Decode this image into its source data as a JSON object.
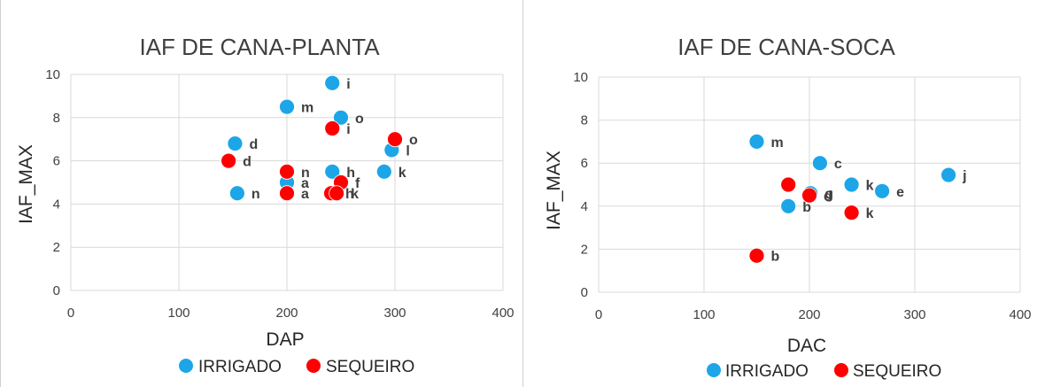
{
  "colors": {
    "irrigado": "#1ca6e8",
    "sequeiro": "#ff0000",
    "grid": "#d9d9d9"
  },
  "chart_data": [
    {
      "type": "scatter",
      "title": "IAF DE CANA-PLANTA",
      "xlabel": "DAP",
      "ylabel": "IAF_MAX",
      "xlim": [
        0,
        400
      ],
      "ylim": [
        0,
        10
      ],
      "xticks": [
        "0",
        "100",
        "200",
        "300",
        "400"
      ],
      "yticks": [
        "0",
        "2",
        "4",
        "6",
        "8",
        "10"
      ],
      "grid": true,
      "legend_position": "bottom",
      "series": [
        {
          "name": "IRRIGADO",
          "points": [
            {
              "x": 242,
              "y": 9.6,
              "label": "i"
            },
            {
              "x": 200,
              "y": 8.5,
              "label": "m"
            },
            {
              "x": 250,
              "y": 8.0,
              "label": "o"
            },
            {
              "x": 152,
              "y": 6.8,
              "label": "d"
            },
            {
              "x": 297,
              "y": 6.5,
              "label": "l"
            },
            {
              "x": 200,
              "y": 5.0,
              "label": "a"
            },
            {
              "x": 242,
              "y": 5.5,
              "label": "h"
            },
            {
              "x": 290,
              "y": 5.5,
              "label": "k"
            },
            {
              "x": 154,
              "y": 4.5,
              "label": "n"
            }
          ]
        },
        {
          "name": "SEQUEIRO",
          "points": [
            {
              "x": 242,
              "y": 7.5,
              "label": "i"
            },
            {
              "x": 300,
              "y": 7.0,
              "label": "o"
            },
            {
              "x": 146,
              "y": 6.0,
              "label": "d"
            },
            {
              "x": 200,
              "y": 5.5,
              "label": "n"
            },
            {
              "x": 250,
              "y": 5.0,
              "label": "f"
            },
            {
              "x": 200,
              "y": 4.5,
              "label": "a"
            },
            {
              "x": 241,
              "y": 4.5,
              "label": "h"
            },
            {
              "x": 246,
              "y": 4.5,
              "label": "k"
            }
          ]
        }
      ]
    },
    {
      "type": "scatter",
      "title": "IAF DE CANA-SOCA",
      "xlabel": "DAC",
      "ylabel": "IAF_MAX",
      "xlim": [
        0,
        400
      ],
      "ylim": [
        0,
        10
      ],
      "xticks": [
        "0",
        "100",
        "200",
        "300",
        "400"
      ],
      "yticks": [
        "0",
        "2",
        "4",
        "6",
        "8",
        "10"
      ],
      "grid": true,
      "legend_position": "bottom",
      "series": [
        {
          "name": "IRRIGADO",
          "points": [
            {
              "x": 150,
              "y": 7.0,
              "label": "m"
            },
            {
              "x": 210,
              "y": 6.0,
              "label": "c"
            },
            {
              "x": 332,
              "y": 5.45,
              "label": "j"
            },
            {
              "x": 240,
              "y": 5.0,
              "label": "k"
            },
            {
              "x": 269,
              "y": 4.7,
              "label": "e"
            },
            {
              "x": 180,
              "y": 4.0,
              "label": "b"
            },
            {
              "x": 201,
              "y": 4.6,
              "label": "g"
            }
          ]
        },
        {
          "name": "SEQUEIRO",
          "points": [
            {
              "x": 180,
              "y": 5.0,
              "label": ""
            },
            {
              "x": 200,
              "y": 4.5,
              "label": "d"
            },
            {
              "x": 240,
              "y": 3.7,
              "label": "k"
            },
            {
              "x": 150,
              "y": 1.7,
              "label": "b"
            }
          ]
        }
      ]
    }
  ]
}
